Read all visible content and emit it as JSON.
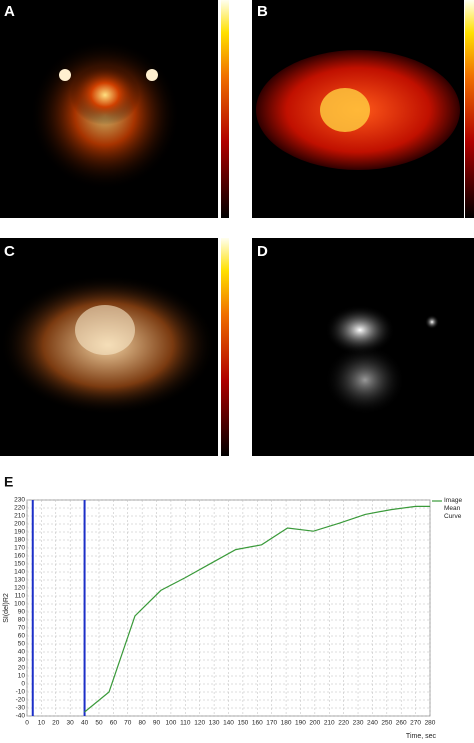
{
  "panels": [
    {
      "label": "A"
    },
    {
      "label": "B"
    },
    {
      "label": "C"
    },
    {
      "label": "D"
    }
  ],
  "chart_data": {
    "type": "line",
    "label": "E",
    "xlabel": "Time, sec",
    "ylabel": "SI(del)R2",
    "x": [
      40,
      57,
      75,
      93,
      110,
      128,
      145,
      163,
      181,
      199,
      217,
      235,
      253,
      270,
      280
    ],
    "series": [
      {
        "name": "Image Mean Curve",
        "color": "#3a9a3a",
        "values": [
          -35,
          -10,
          85,
          117,
          133,
          151,
          168,
          174,
          195,
          191,
          201,
          212,
          218,
          222,
          222
        ]
      }
    ],
    "markers": {
      "color": "#1c2fc8",
      "x": [
        4,
        40
      ]
    },
    "xlim": [
      0,
      280
    ],
    "xticks": [
      0,
      10,
      20,
      30,
      40,
      50,
      60,
      70,
      80,
      90,
      100,
      110,
      120,
      130,
      140,
      150,
      160,
      170,
      180,
      190,
      200,
      210,
      220,
      230,
      240,
      250,
      260,
      270,
      280
    ],
    "ylim": [
      -40,
      230
    ],
    "yticks": [
      -40,
      -30,
      -20,
      -10,
      0,
      10,
      20,
      30,
      40,
      50,
      60,
      70,
      80,
      90,
      100,
      110,
      120,
      130,
      140,
      150,
      160,
      170,
      180,
      190,
      200,
      210,
      220,
      230
    ],
    "grid": true,
    "legend": "upper right"
  }
}
